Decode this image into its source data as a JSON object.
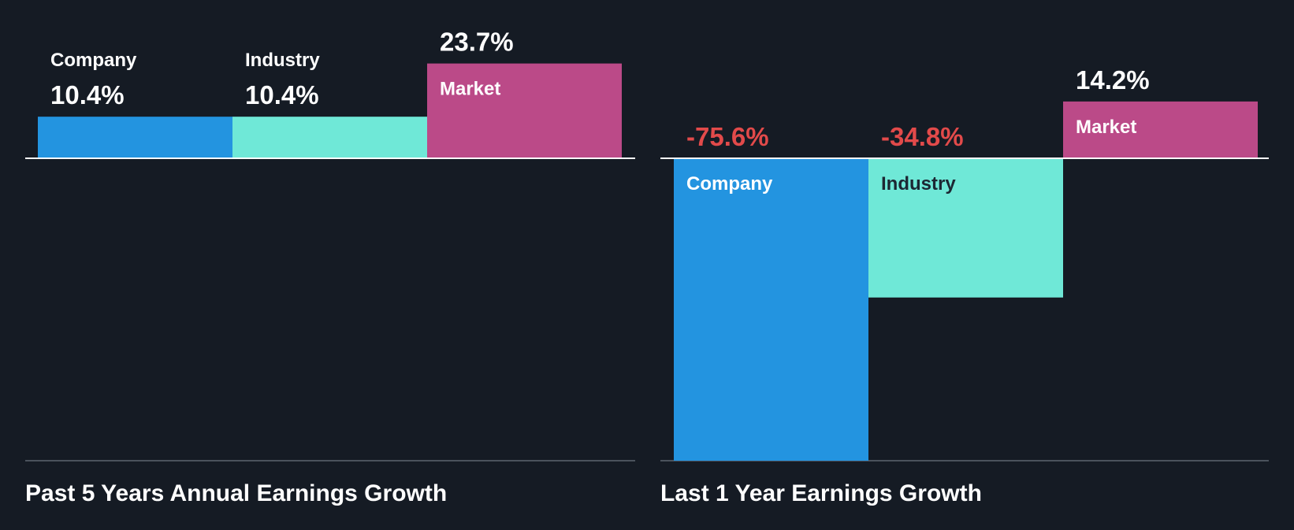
{
  "colors": {
    "background": "#151b24",
    "company": "#2394e0",
    "industry": "#6fe8d7",
    "market": "#bb4a88",
    "negative_text": "#e24a4a",
    "positive_text": "#ffffff",
    "label_on_dark_bar": "#ffffff",
    "label_on_light_bar": "#1c2733",
    "axis": "#ffffff",
    "baseline": "#4a525c"
  },
  "chart_data": [
    {
      "type": "bar",
      "title": "Past 5 Years Annual Earnings Growth",
      "categories": [
        "Company",
        "Industry",
        "Market"
      ],
      "values": [
        10.4,
        10.4,
        23.7
      ],
      "value_labels": [
        "10.4%",
        "10.4%",
        "23.7%"
      ],
      "unit": "%",
      "ylim": [
        -75.6,
        23.7
      ],
      "grid": false,
      "legend": "none"
    },
    {
      "type": "bar",
      "title": "Last 1 Year Earnings Growth",
      "categories": [
        "Company",
        "Industry",
        "Market"
      ],
      "values": [
        -75.6,
        -34.8,
        14.2
      ],
      "value_labels": [
        "-75.6%",
        "-34.8%",
        "14.2%"
      ],
      "unit": "%",
      "ylim": [
        -75.6,
        23.7
      ],
      "grid": false,
      "legend": "none"
    }
  ]
}
